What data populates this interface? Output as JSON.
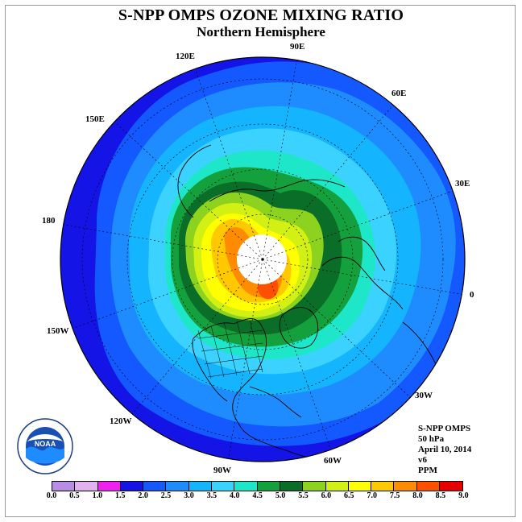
{
  "title": "S-NPP OMPS OZONE MIXING RATIO",
  "subtitle": "Northern Hemisphere",
  "longitude_labels": [
    "90E",
    "60E",
    "30E",
    "0",
    "30W",
    "60W",
    "90W",
    "120W",
    "150W",
    "180",
    "150E",
    "120E"
  ],
  "info": {
    "instrument": "S-NPP OMPS",
    "level": "50 hPa",
    "date": "April 10, 2014",
    "version": "v6",
    "units": "PPM"
  },
  "colorbar": {
    "ticks": [
      "0.0",
      "0.5",
      "1.0",
      "1.5",
      "2.0",
      "2.5",
      "3.0",
      "3.5",
      "4.0",
      "4.5",
      "5.0",
      "5.5",
      "6.0",
      "6.5",
      "7.0",
      "7.5",
      "8.0",
      "8.5",
      "9.0"
    ],
    "colors": [
      "#b98ce8",
      "#e2b2f0",
      "#f020f0",
      "#1414e6",
      "#1458ff",
      "#1e8cff",
      "#14b4ff",
      "#3cd2ff",
      "#1ee6c8",
      "#14a03c",
      "#0a6e28",
      "#8cd21e",
      "#d2f014",
      "#ffff00",
      "#ffc800",
      "#ff8c00",
      "#ff5000",
      "#e60000",
      "#8c5a3c"
    ]
  },
  "logo": {
    "text": "NOAA",
    "ring_text": "NATIONAL OCEANIC AND ATMOSPHERIC ADMINISTRATION · U.S. DEPARTMENT OF COMMERCE"
  }
}
